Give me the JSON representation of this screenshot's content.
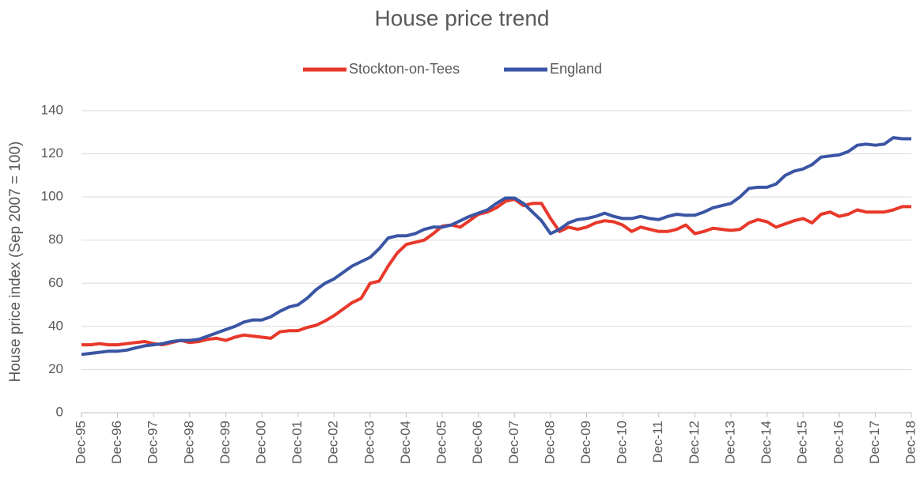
{
  "chart_data": {
    "type": "line",
    "title": "House price trend",
    "y_label": "House price index (Sep 2007 = 100)",
    "categories": [
      "Dec-95",
      null,
      null,
      null,
      "Dec-96",
      null,
      null,
      null,
      "Dec-97",
      null,
      null,
      null,
      "Dec-98",
      null,
      null,
      null,
      "Dec-99",
      null,
      null,
      null,
      "Dec-00",
      null,
      null,
      null,
      "Dec-01",
      null,
      null,
      null,
      "Dec-02",
      null,
      null,
      null,
      "Dec-03",
      null,
      null,
      null,
      "Dec-04",
      null,
      null,
      null,
      "Dec-05",
      null,
      null,
      null,
      "Dec-06",
      null,
      null,
      null,
      "Dec-07",
      null,
      null,
      null,
      "Dec-08",
      null,
      null,
      null,
      "Dec-09",
      null,
      null,
      null,
      "Dec-10",
      null,
      null,
      null,
      "Dec-11",
      null,
      null,
      null,
      "Dec-12",
      null,
      null,
      null,
      "Dec-13",
      null,
      null,
      null,
      "Dec-14",
      null,
      null,
      null,
      "Dec-15",
      null,
      null,
      null,
      "Dec-16",
      null,
      null,
      null,
      "Dec-17",
      null,
      null,
      null,
      "Dec-18"
    ],
    "series": [
      {
        "name": "Stockton-on-Tees",
        "color": "#e8382a",
        "values": [
          31.5,
          31.5,
          32,
          31.5,
          31.5,
          32,
          32.5,
          33,
          32,
          31.5,
          32.5,
          33.5,
          32.5,
          33,
          34,
          34.5,
          33.5,
          35,
          36,
          35.5,
          35,
          34.5,
          37.5,
          38,
          38,
          39.5,
          40.5,
          42.5,
          45,
          48,
          51,
          53,
          60,
          61,
          68,
          74,
          78,
          79,
          80,
          83,
          86.5,
          87,
          86,
          89,
          92,
          93,
          95,
          98,
          99,
          96,
          97,
          97,
          90,
          84,
          86,
          85,
          86,
          88,
          89,
          88.5,
          87,
          84,
          86,
          85,
          84,
          84,
          85,
          87,
          83,
          84,
          85.5,
          85,
          84.5,
          85,
          88,
          89.5,
          88.5,
          86,
          87.5,
          89,
          90,
          88,
          92,
          93,
          91,
          92,
          94,
          93,
          93,
          93,
          94,
          95.5,
          95.5
        ]
      },
      {
        "name": "England",
        "color": "#3a55a4",
        "values": [
          27,
          27.5,
          28,
          28.5,
          28.5,
          29,
          30,
          31,
          31.5,
          32,
          33,
          33.5,
          33.5,
          34,
          35.5,
          37,
          38.5,
          40,
          42,
          43,
          43,
          44.5,
          47,
          49,
          50,
          53,
          57,
          60,
          62,
          65,
          68,
          70,
          72,
          76,
          81,
          82,
          82,
          83,
          85,
          86,
          86,
          87,
          89,
          91,
          92.5,
          94,
          97,
          99.5,
          99.5,
          97,
          93,
          89,
          83,
          85,
          88,
          89.5,
          90,
          91,
          92.5,
          91,
          90,
          90,
          91,
          90,
          89.5,
          91,
          92,
          91.5,
          91.5,
          93,
          95,
          96,
          97,
          100,
          104,
          104.5,
          104.5,
          106,
          110,
          112,
          113,
          115,
          118.5,
          119,
          119.5,
          121,
          124,
          124.5,
          124,
          124.5,
          127.5,
          127,
          127
        ]
      }
    ],
    "ylim": [
      0,
      140
    ],
    "yticks": [
      0,
      20,
      40,
      60,
      80,
      100,
      120,
      140
    ],
    "grid": true,
    "legend": "top"
  }
}
